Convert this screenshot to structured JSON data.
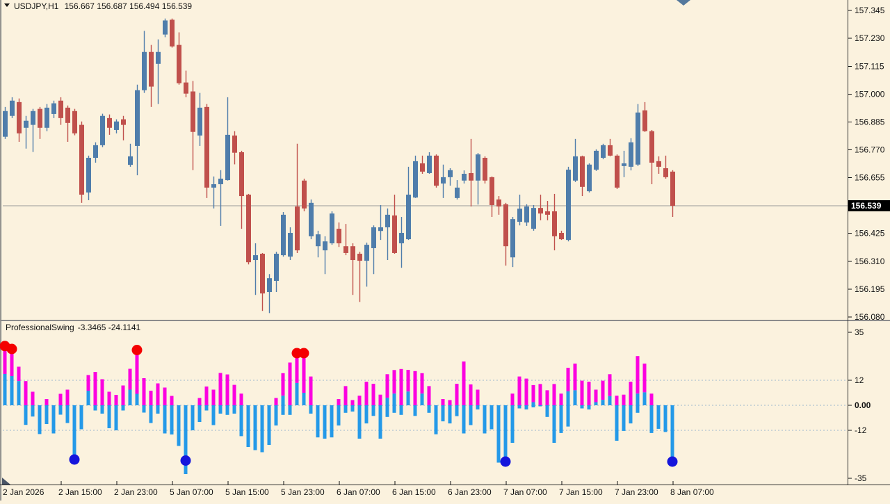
{
  "header": {
    "symbol": "USDJPY,H1",
    "quote_line": "156.667 156.687 156.494 156.539"
  },
  "indicator_header": {
    "name": "ProfessionalSwing",
    "values_line": "-3.3465 -24.1141"
  },
  "price_axis": {
    "current_price_label": "156.539"
  },
  "icons": {
    "symbol_dropdown": "down-triangle",
    "scroll_to_end": "down-triangle-marker",
    "pane_corner": "corner-triangle"
  },
  "colors": {
    "background": "#fbf2de",
    "bull": "#4f7dab",
    "bear": "#c0504c",
    "hist_up": "#fb00e0",
    "hist_down": "#2499e8",
    "dot_red": "#f40000",
    "dot_blue": "#1515dc",
    "grid_dash": "#9eb8cf",
    "price_line": "#9a9a9a",
    "border": "#2a2a2a",
    "divider": "#8c8c8c",
    "price_tag_bg": "#000000",
    "price_tag_text": "#ffffff",
    "scroll_marker": "#54789c",
    "corner_marker": "#4a5566"
  },
  "chart_data": [
    {
      "type": "candlestick",
      "title": "USDJPY,H1 156.667 156.687 156.494 156.539",
      "symbol": "USDJPY,H1",
      "quote_line": "156.667 156.687 156.494 156.539",
      "current_price": 156.539,
      "y_ticks": [
        157.345,
        157.23,
        157.115,
        157.0,
        156.885,
        156.77,
        156.655,
        156.425,
        156.31,
        156.195,
        156.08
      ],
      "ylim": [
        156.04,
        157.38
      ],
      "x_labels": [
        "2 Jan 2026",
        "2 Jan 15:00",
        "2 Jan 23:00",
        "5 Jan 07:00",
        "5 Jan 15:00",
        "5 Jan 23:00",
        "6 Jan 07:00",
        "6 Jan 15:00",
        "6 Jan 23:00",
        "7 Jan 07:00",
        "7 Jan 15:00",
        "7 Jan 23:00",
        "8 Jan 07:00"
      ],
      "x_label_step": 8,
      "grid": false,
      "candles_ohlc": [
        [
          156.824,
          156.947,
          156.815,
          156.93
        ],
        [
          156.91,
          156.987,
          156.901,
          156.973
        ],
        [
          156.967,
          156.982,
          156.803,
          156.838
        ],
        [
          156.861,
          156.91,
          156.775,
          156.89
        ],
        [
          156.873,
          156.939,
          156.761,
          156.93
        ],
        [
          156.939,
          156.947,
          156.815,
          156.861
        ],
        [
          156.861,
          156.959,
          156.847,
          156.944
        ],
        [
          156.918,
          156.973,
          156.901,
          156.962
        ],
        [
          156.973,
          156.987,
          156.873,
          156.901
        ],
        [
          156.944,
          156.953,
          156.803,
          156.881
        ],
        [
          156.93,
          156.939,
          156.83,
          156.838
        ],
        [
          156.873,
          156.887,
          156.551,
          156.585
        ],
        [
          156.594,
          156.746,
          156.562,
          156.737
        ],
        [
          156.737,
          156.801,
          156.717,
          156.789
        ],
        [
          156.789,
          156.919,
          156.781,
          156.91
        ],
        [
          156.901,
          156.916,
          156.832,
          156.861
        ],
        [
          156.852,
          156.896,
          156.838,
          156.887
        ],
        [
          156.896,
          156.91,
          156.809,
          156.873
        ],
        [
          156.708,
          156.795,
          156.7,
          156.743
        ],
        [
          156.786,
          157.039,
          156.665,
          157.016
        ],
        [
          157.016,
          157.261,
          157.005,
          157.174
        ],
        [
          157.174,
          157.203,
          156.947,
          157.031
        ],
        [
          157.125,
          157.226,
          156.959,
          157.174
        ],
        [
          157.246,
          157.312,
          157.235,
          157.304
        ],
        [
          157.307,
          157.312,
          157.192,
          157.197
        ],
        [
          157.203,
          157.255,
          157.039,
          157.045
        ],
        [
          157.048,
          157.097,
          156.987,
          157.002
        ],
        [
          157.011,
          157.054,
          156.686,
          156.844
        ],
        [
          156.829,
          157.005,
          156.786,
          156.944
        ],
        [
          156.947,
          156.959,
          156.571,
          156.614
        ],
        [
          156.614,
          156.66,
          156.528,
          156.628
        ],
        [
          156.628,
          156.686,
          156.456,
          156.651
        ],
        [
          156.645,
          156.987,
          156.643,
          156.832
        ],
        [
          156.829,
          156.847,
          156.71,
          156.758
        ],
        [
          156.76,
          156.766,
          156.444,
          156.579
        ],
        [
          156.585,
          156.588,
          156.297,
          156.306
        ],
        [
          156.315,
          156.384,
          156.171,
          156.335
        ],
        [
          156.341,
          156.344,
          156.105,
          156.177
        ],
        [
          156.183,
          156.257,
          156.096,
          156.24
        ],
        [
          156.229,
          156.349,
          156.183,
          156.341
        ],
        [
          156.335,
          156.513,
          156.329,
          156.502
        ],
        [
          156.329,
          156.45,
          156.315,
          156.427
        ],
        [
          156.536,
          156.795,
          156.344,
          156.355
        ],
        [
          156.643,
          156.651,
          156.516,
          156.528
        ],
        [
          156.413,
          156.565,
          156.401,
          156.551
        ],
        [
          156.372,
          156.436,
          156.326,
          156.421
        ],
        [
          156.355,
          156.413,
          156.257,
          156.392
        ],
        [
          156.384,
          156.516,
          156.378,
          156.507
        ],
        [
          156.444,
          156.47,
          156.369,
          156.384
        ],
        [
          156.372,
          156.464,
          156.335,
          156.344
        ],
        [
          156.372,
          156.384,
          156.171,
          156.315
        ],
        [
          156.341,
          156.349,
          156.142,
          156.312
        ],
        [
          156.312,
          156.387,
          156.205,
          156.378
        ],
        [
          156.364,
          156.458,
          156.257,
          156.45
        ],
        [
          156.435,
          156.542,
          156.398,
          156.45
        ],
        [
          156.45,
          156.528,
          156.315,
          156.502
        ],
        [
          156.499,
          156.585,
          156.341,
          156.344
        ],
        [
          156.384,
          156.493,
          156.283,
          156.427
        ],
        [
          156.401,
          156.7,
          156.398,
          156.585
        ],
        [
          156.573,
          156.746,
          156.571,
          156.723
        ],
        [
          156.714,
          156.746,
          156.671,
          156.68
        ],
        [
          156.674,
          156.76,
          156.671,
          156.746
        ],
        [
          156.746,
          156.751,
          156.614,
          156.622
        ],
        [
          156.631,
          156.709,
          156.571,
          156.657
        ],
        [
          156.657,
          156.694,
          156.622,
          156.686
        ],
        [
          156.571,
          156.645,
          156.565,
          156.614
        ],
        [
          156.643,
          156.685,
          156.631,
          156.671
        ],
        [
          156.674,
          156.815,
          156.536,
          156.643
        ],
        [
          156.643,
          156.757,
          156.544,
          156.751
        ],
        [
          156.737,
          156.743,
          156.631,
          156.643
        ],
        [
          156.657,
          156.66,
          156.493,
          156.542
        ],
        [
          156.565,
          156.579,
          156.502,
          156.536
        ],
        [
          156.545,
          156.551,
          156.292,
          156.372
        ],
        [
          156.326,
          156.493,
          156.286,
          156.484
        ],
        [
          156.473,
          156.585,
          156.458,
          156.527
        ],
        [
          156.47,
          156.545,
          156.456,
          156.536
        ],
        [
          156.444,
          156.542,
          156.436,
          156.53
        ],
        [
          156.53,
          156.585,
          156.479,
          156.507
        ],
        [
          156.516,
          156.559,
          156.479,
          156.502
        ],
        [
          156.516,
          156.588,
          156.355,
          156.413
        ],
        [
          156.427,
          156.436,
          156.398,
          156.401
        ],
        [
          156.398,
          156.7,
          156.392,
          156.688
        ],
        [
          156.643,
          156.815,
          156.637,
          156.743
        ],
        [
          156.743,
          156.746,
          156.579,
          156.617
        ],
        [
          156.599,
          156.714,
          156.594,
          156.709
        ],
        [
          156.688,
          156.772,
          156.683,
          156.766
        ],
        [
          156.737,
          156.795,
          156.731,
          156.789
        ],
        [
          156.789,
          156.815,
          156.743,
          156.746
        ],
        [
          156.746,
          156.751,
          156.608,
          156.614
        ],
        [
          156.703,
          156.766,
          156.657,
          156.714
        ],
        [
          156.7,
          156.818,
          156.685,
          156.801
        ],
        [
          156.709,
          156.959,
          156.703,
          156.924
        ],
        [
          156.933,
          156.967,
          156.844,
          156.847
        ],
        [
          156.847,
          156.852,
          156.628,
          156.717
        ],
        [
          156.723,
          156.743,
          156.671,
          156.7
        ],
        [
          156.694,
          156.746,
          156.651,
          156.657
        ],
        [
          156.68,
          156.686,
          156.493,
          156.539
        ]
      ]
    },
    {
      "type": "bar",
      "title": "ProfessionalSwing",
      "values_line": "-3.3465 -24.1141",
      "y_ticks": [
        35,
        12,
        0,
        -12,
        -35
      ],
      "grid_levels": [
        12,
        0,
        -12
      ],
      "ylim": [
        -35,
        35
      ],
      "legend_note": "magenta = up swing segment, blue = down swing segment, bars given as [top, colorSplit, bottom]",
      "bars": [
        [
          28.4,
          15,
          0
        ],
        [
          26,
          14,
          0
        ],
        [
          18.5,
          11.6,
          0
        ],
        [
          11.6,
          0,
          -9.4
        ],
        [
          6.5,
          0,
          -5.4
        ],
        [
          0,
          0,
          -13.8
        ],
        [
          3,
          0,
          -9
        ],
        [
          0,
          0,
          -13.5
        ],
        [
          5.5,
          0,
          -4.5
        ],
        [
          7.5,
          0,
          -8.5
        ],
        [
          0,
          0,
          -26
        ],
        [
          0,
          0,
          -11.5
        ],
        [
          14.5,
          7,
          0
        ],
        [
          16,
          0,
          -2.5
        ],
        [
          12.5,
          0,
          -4
        ],
        [
          6.5,
          0,
          -11
        ],
        [
          5,
          0,
          -12
        ],
        [
          9.5,
          0,
          -2.5
        ],
        [
          17.5,
          7.5,
          0
        ],
        [
          26,
          5.5,
          0
        ],
        [
          13,
          0,
          -3.5
        ],
        [
          7,
          0,
          -8.5
        ],
        [
          10.5,
          0,
          -4
        ],
        [
          8.5,
          0,
          -13.5
        ],
        [
          4.5,
          0,
          -14
        ],
        [
          0,
          0,
          -19.5
        ],
        [
          0,
          0,
          -33
        ],
        [
          0,
          0,
          -12
        ],
        [
          3.5,
          0,
          -8
        ],
        [
          9,
          0,
          -2.5
        ],
        [
          7.5,
          0,
          -9.5
        ],
        [
          15.5,
          0,
          -4
        ],
        [
          14.8,
          0,
          -4.6
        ],
        [
          9.8,
          0,
          -4
        ],
        [
          5.6,
          0,
          -14.8
        ],
        [
          0,
          0,
          -20
        ],
        [
          0,
          0,
          -21.5
        ],
        [
          0,
          0,
          -22.5
        ],
        [
          0,
          0,
          -19
        ],
        [
          3.5,
          0,
          -9.7
        ],
        [
          15.4,
          4.6,
          -4.6
        ],
        [
          20.5,
          0,
          -4.6
        ],
        [
          24.5,
          10.7,
          0
        ],
        [
          25,
          6,
          0
        ],
        [
          13.8,
          0,
          -4
        ],
        [
          0,
          0,
          -15.4
        ],
        [
          0,
          0,
          -16
        ],
        [
          0,
          0,
          -15.4
        ],
        [
          3,
          0,
          -9.7
        ],
        [
          9.2,
          0,
          -3.6
        ],
        [
          2.5,
          0,
          -3
        ],
        [
          4.6,
          0,
          -16
        ],
        [
          11.3,
          0,
          -8.7
        ],
        [
          10.3,
          0,
          -5.1
        ],
        [
          5.1,
          0,
          -16
        ],
        [
          14.9,
          3.6,
          -5.6
        ],
        [
          16.9,
          5.6,
          -3.6
        ],
        [
          17.4,
          0,
          -4.6
        ],
        [
          17,
          6.6,
          0
        ],
        [
          16.4,
          0,
          -5.1
        ],
        [
          15.4,
          5.6,
          0
        ],
        [
          9.2,
          0,
          -3.6
        ],
        [
          0,
          0,
          -13.9
        ],
        [
          3,
          0,
          -7.7
        ],
        [
          2.5,
          0,
          -8.7
        ],
        [
          10.3,
          0,
          -5.2
        ],
        [
          21,
          0,
          -13.5
        ],
        [
          10,
          0,
          -9.5
        ],
        [
          7.5,
          0,
          -2
        ],
        [
          0,
          0,
          -13.5
        ],
        [
          0,
          0,
          -11.5
        ],
        [
          0,
          0,
          -27.5
        ],
        [
          0,
          0,
          -28
        ],
        [
          5.6,
          0,
          -18
        ],
        [
          13.8,
          0,
          -1.5
        ],
        [
          12.8,
          0,
          -2
        ],
        [
          9.7,
          1.5,
          -1
        ],
        [
          10.2,
          0,
          -0.5
        ],
        [
          7.2,
          0,
          -5.6
        ],
        [
          10.2,
          0,
          -18
        ],
        [
          5.6,
          0,
          -13.3
        ],
        [
          18,
          6.7,
          -10.2
        ],
        [
          20,
          7.2,
          0
        ],
        [
          11.8,
          0,
          -1.5
        ],
        [
          11.3,
          0,
          -2
        ],
        [
          7.5,
          1.5,
          0
        ],
        [
          11.8,
          2.6,
          0
        ],
        [
          14.9,
          4.4,
          0
        ],
        [
          4.6,
          0,
          -17
        ],
        [
          5.1,
          0,
          -12.3
        ],
        [
          11.3,
          0,
          -8.7
        ],
        [
          23.6,
          5.6,
          -3.6
        ],
        [
          20,
          6.2,
          0
        ],
        [
          5.6,
          0,
          -13.3
        ],
        [
          0,
          0,
          -11.3
        ],
        [
          0,
          0,
          -12.8
        ],
        [
          0,
          0,
          -27.2
        ]
      ],
      "red_dots": [
        [
          0,
          28.4
        ],
        [
          1,
          27
        ],
        [
          19,
          26.5
        ],
        [
          42,
          25
        ],
        [
          43,
          25
        ]
      ],
      "blue_dots": [
        [
          10,
          -26
        ],
        [
          26,
          -26.5
        ],
        [
          72,
          -27
        ],
        [
          96,
          -27
        ]
      ]
    }
  ]
}
